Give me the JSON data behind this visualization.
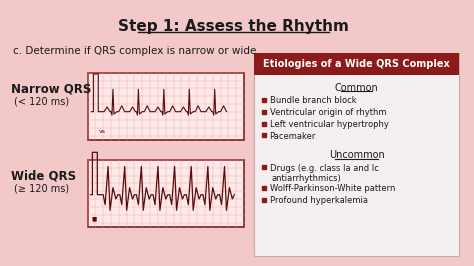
{
  "title": "Step 1: Assess the Rhythm",
  "subtitle": "c. Determine if QRS complex is narrow or wide.",
  "bg_color": "#f2c8c8",
  "narrow_label": "Narrow QRS",
  "narrow_sublabel": "(< 120 ms)",
  "wide_label": "Wide QRS",
  "wide_sublabel": "(≥ 120 ms)",
  "box_header": "Etiologies of a Wide QRS Complex",
  "box_header_bg": "#8b1a1a",
  "box_header_color": "#ffffff",
  "box_bg": "#f5f0f0",
  "common_title": "Common",
  "common_items": [
    "Bundle branch block",
    "Ventricular origin of rhythm",
    "Left ventricular hypertrophy",
    "Pacemaker"
  ],
  "uncommon_title": "Uncommon",
  "uncommon_line1": "Drugs (e.g. class Ia and Ic",
  "uncommon_line2": "antiarrhythmics)",
  "uncommon_items2": [
    "Wolff-Parkinson-White pattern",
    "Profound hyperkalemia"
  ],
  "ecg_border_color": "#8b1a1a",
  "ecg_grid_color": "#f5a0a0",
  "ecg_line_color": "#5a0a0a",
  "bullet_color": "#8b1a1a"
}
